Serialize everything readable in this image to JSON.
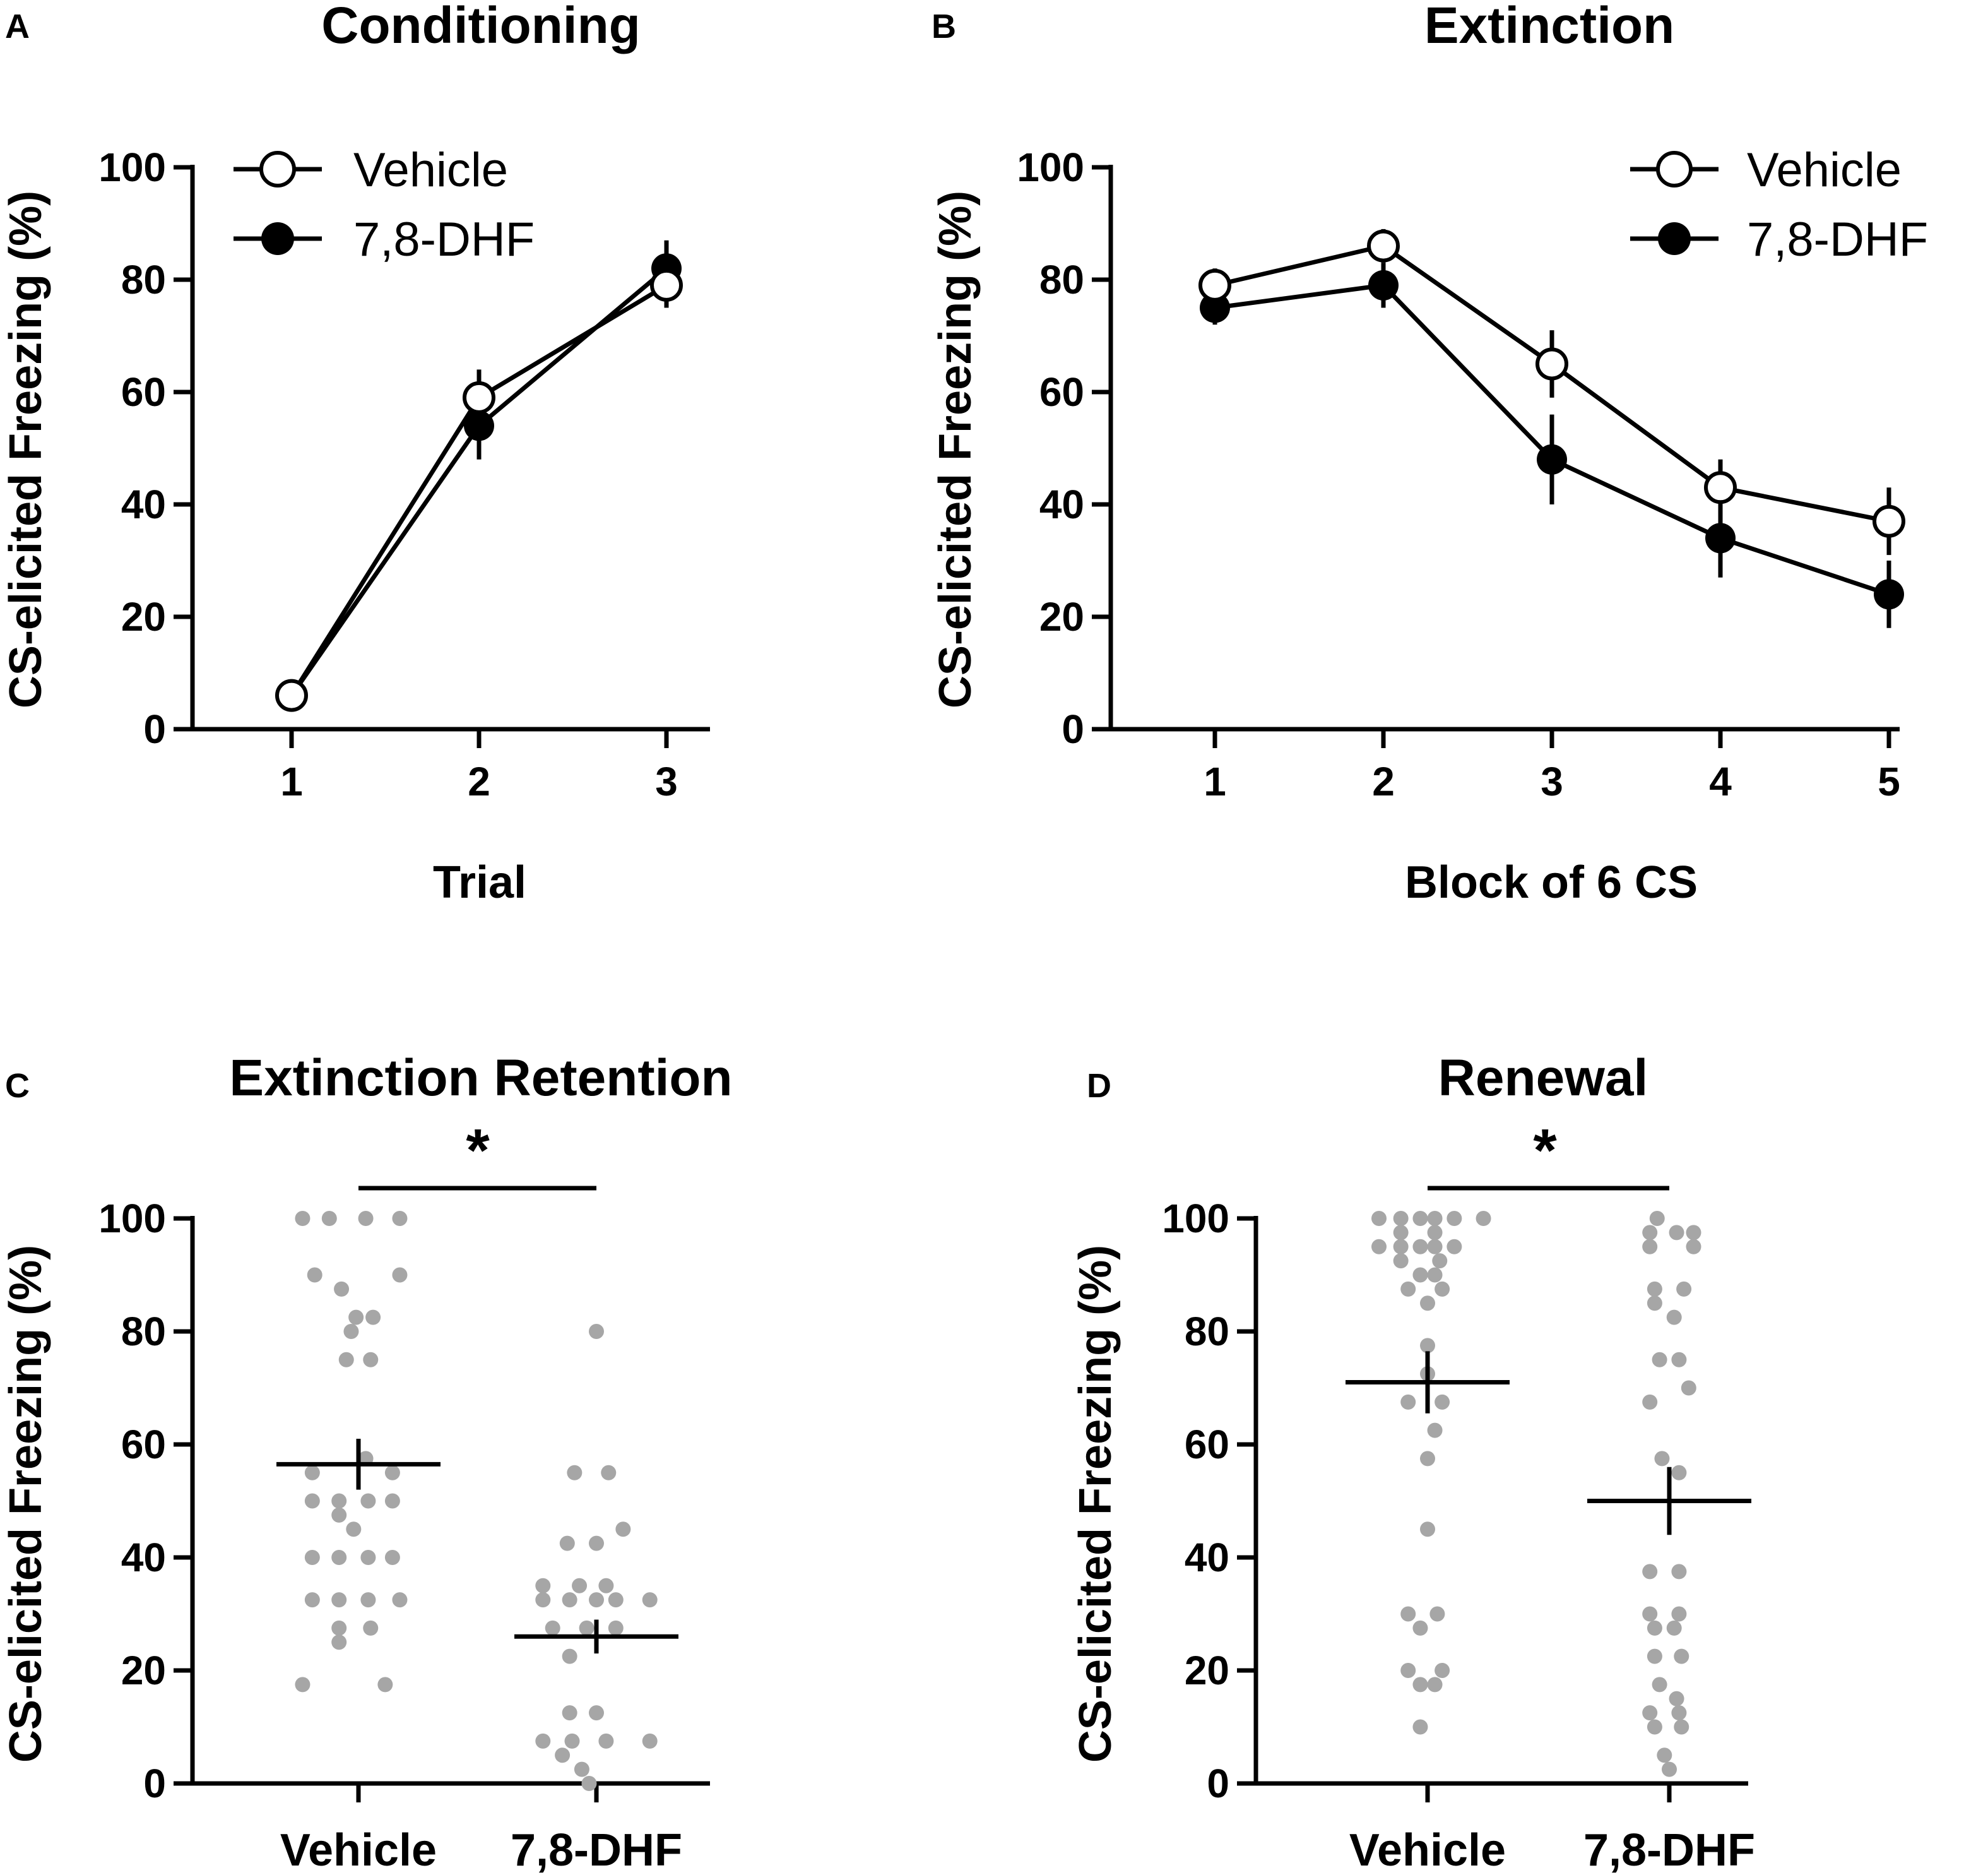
{
  "chart_data": [
    {
      "panel": "A",
      "type": "line",
      "title": "Conditioning",
      "xlabel": "Trial",
      "ylabel": "CS-elicited Freezing (%)",
      "ylim": [
        0,
        100
      ],
      "yticks": [
        0,
        20,
        40,
        60,
        80,
        100
      ],
      "x": [
        1,
        2,
        3
      ],
      "legend": "top-left",
      "series": [
        {
          "name": "Vehicle",
          "marker": "open",
          "values": [
            6,
            59,
            79
          ],
          "errors": [
            1,
            5,
            4
          ]
        },
        {
          "name": "7,8-DHF",
          "marker": "filled",
          "values": [
            6,
            54,
            82
          ],
          "errors": [
            1,
            6,
            5
          ]
        }
      ]
    },
    {
      "panel": "B",
      "type": "line",
      "title": "Extinction",
      "xlabel": "Block of 6 CS",
      "ylabel": "CS-elicited Freezing (%)",
      "ylim": [
        0,
        100
      ],
      "yticks": [
        0,
        20,
        40,
        60,
        80,
        100
      ],
      "x": [
        1,
        2,
        3,
        4,
        5
      ],
      "legend": "top-right",
      "series": [
        {
          "name": "Vehicle",
          "marker": "open",
          "values": [
            79,
            86,
            65,
            43,
            37
          ],
          "errors": [
            3,
            3,
            6,
            5,
            6
          ]
        },
        {
          "name": "7,8-DHF",
          "marker": "filled",
          "values": [
            75,
            79,
            48,
            34,
            24
          ],
          "errors": [
            3,
            4,
            8,
            7,
            6
          ]
        }
      ]
    },
    {
      "panel": "C",
      "type": "scatter",
      "title": "Extinction Retention",
      "xlabel": "",
      "ylabel": "CS-elicited Freezing (%)",
      "ylim": [
        0,
        100
      ],
      "yticks": [
        0,
        20,
        40,
        60,
        80,
        100
      ],
      "categories": [
        "Vehicle",
        "7,8-DHF"
      ],
      "significance": "*",
      "groups": [
        {
          "name": "Vehicle",
          "mean": 56.5,
          "sem": 4.5,
          "points": [
            {
              "offset": -0.23,
              "value": 100
            },
            {
              "offset": -0.12,
              "value": 100
            },
            {
              "offset": 0.03,
              "value": 100
            },
            {
              "offset": 0.17,
              "value": 100
            },
            {
              "offset": -0.18,
              "value": 90
            },
            {
              "offset": 0.17,
              "value": 90
            },
            {
              "offset": -0.07,
              "value": 87.5
            },
            {
              "offset": -0.01,
              "value": 82.5
            },
            {
              "offset": 0.06,
              "value": 82.5
            },
            {
              "offset": -0.03,
              "value": 80
            },
            {
              "offset": -0.05,
              "value": 75
            },
            {
              "offset": 0.05,
              "value": 75
            },
            {
              "offset": -0.19,
              "value": 55
            },
            {
              "offset": 0.14,
              "value": 55
            },
            {
              "offset": 0.03,
              "value": 57.5
            },
            {
              "offset": -0.19,
              "value": 50
            },
            {
              "offset": -0.08,
              "value": 50
            },
            {
              "offset": 0.04,
              "value": 50
            },
            {
              "offset": 0.14,
              "value": 50
            },
            {
              "offset": -0.08,
              "value": 47.5
            },
            {
              "offset": -0.02,
              "value": 45
            },
            {
              "offset": -0.19,
              "value": 40
            },
            {
              "offset": -0.08,
              "value": 40
            },
            {
              "offset": 0.04,
              "value": 40
            },
            {
              "offset": 0.14,
              "value": 40
            },
            {
              "offset": -0.19,
              "value": 32.5
            },
            {
              "offset": -0.08,
              "value": 32.5
            },
            {
              "offset": 0.04,
              "value": 32.5
            },
            {
              "offset": 0.17,
              "value": 32.5
            },
            {
              "offset": -0.08,
              "value": 27.5
            },
            {
              "offset": 0.05,
              "value": 27.5
            },
            {
              "offset": -0.08,
              "value": 25
            },
            {
              "offset": -0.23,
              "value": 17.5
            },
            {
              "offset": 0.11,
              "value": 17.5
            }
          ]
        },
        {
          "name": "7,8-DHF",
          "mean": 26,
          "sem": 3,
          "points": [
            {
              "offset": 0.0,
              "value": 80
            },
            {
              "offset": -0.09,
              "value": 55
            },
            {
              "offset": 0.05,
              "value": 55
            },
            {
              "offset": 0.11,
              "value": 45
            },
            {
              "offset": -0.12,
              "value": 42.5
            },
            {
              "offset": 0.0,
              "value": 42.5
            },
            {
              "offset": -0.22,
              "value": 35
            },
            {
              "offset": -0.07,
              "value": 35
            },
            {
              "offset": 0.04,
              "value": 35
            },
            {
              "offset": -0.22,
              "value": 32.5
            },
            {
              "offset": -0.11,
              "value": 32.5
            },
            {
              "offset": 0.0,
              "value": 32.5
            },
            {
              "offset": 0.08,
              "value": 32.5
            },
            {
              "offset": 0.22,
              "value": 32.5
            },
            {
              "offset": -0.18,
              "value": 27.5
            },
            {
              "offset": -0.04,
              "value": 27.5
            },
            {
              "offset": 0.08,
              "value": 27.5
            },
            {
              "offset": -0.11,
              "value": 22.5
            },
            {
              "offset": -0.11,
              "value": 12.5
            },
            {
              "offset": 0.0,
              "value": 12.5
            },
            {
              "offset": -0.22,
              "value": 7.5
            },
            {
              "offset": -0.1,
              "value": 7.5
            },
            {
              "offset": 0.04,
              "value": 7.5
            },
            {
              "offset": 0.22,
              "value": 7.5
            },
            {
              "offset": -0.14,
              "value": 5
            },
            {
              "offset": -0.06,
              "value": 2.5
            },
            {
              "offset": -0.03,
              "value": 0
            }
          ]
        }
      ]
    },
    {
      "panel": "D",
      "type": "scatter",
      "title": "Renewal",
      "xlabel": "",
      "ylabel": "CS-elicited Freezing (%)",
      "ylim": [
        0,
        100
      ],
      "yticks": [
        0,
        20,
        40,
        60,
        80,
        100
      ],
      "categories": [
        "Vehicle",
        "7,8-DHF"
      ],
      "significance": "*",
      "groups": [
        {
          "name": "Vehicle",
          "mean": 71,
          "sem": 5.5,
          "points": [
            {
              "offset": -0.2,
              "value": 100
            },
            {
              "offset": -0.11,
              "value": 100
            },
            {
              "offset": -0.03,
              "value": 100
            },
            {
              "offset": 0.03,
              "value": 100
            },
            {
              "offset": 0.11,
              "value": 100
            },
            {
              "offset": 0.23,
              "value": 100
            },
            {
              "offset": -0.11,
              "value": 97.5
            },
            {
              "offset": 0.03,
              "value": 97.5
            },
            {
              "offset": -0.2,
              "value": 95
            },
            {
              "offset": -0.11,
              "value": 95
            },
            {
              "offset": -0.03,
              "value": 95
            },
            {
              "offset": 0.03,
              "value": 95
            },
            {
              "offset": 0.11,
              "value": 95
            },
            {
              "offset": -0.11,
              "value": 92.5
            },
            {
              "offset": 0.05,
              "value": 92.5
            },
            {
              "offset": -0.03,
              "value": 90
            },
            {
              "offset": 0.03,
              "value": 90
            },
            {
              "offset": -0.08,
              "value": 87.5
            },
            {
              "offset": 0.06,
              "value": 87.5
            },
            {
              "offset": 0.0,
              "value": 85
            },
            {
              "offset": 0.0,
              "value": 77.5
            },
            {
              "offset": 0.0,
              "value": 72.5
            },
            {
              "offset": -0.08,
              "value": 67.5
            },
            {
              "offset": 0.06,
              "value": 67.5
            },
            {
              "offset": 0.03,
              "value": 62.5
            },
            {
              "offset": 0.0,
              "value": 57.5
            },
            {
              "offset": 0.0,
              "value": 45
            },
            {
              "offset": -0.08,
              "value": 30
            },
            {
              "offset": 0.04,
              "value": 30
            },
            {
              "offset": -0.03,
              "value": 27.5
            },
            {
              "offset": -0.08,
              "value": 20
            },
            {
              "offset": 0.06,
              "value": 20
            },
            {
              "offset": -0.03,
              "value": 17.5
            },
            {
              "offset": 0.03,
              "value": 17.5
            },
            {
              "offset": -0.03,
              "value": 10
            }
          ]
        },
        {
          "name": "7,8-DHF",
          "mean": 50,
          "sem": 6,
          "points": [
            {
              "offset": -0.05,
              "value": 100
            },
            {
              "offset": -0.08,
              "value": 97.5
            },
            {
              "offset": 0.03,
              "value": 97.5
            },
            {
              "offset": 0.1,
              "value": 97.5
            },
            {
              "offset": -0.08,
              "value": 95
            },
            {
              "offset": 0.1,
              "value": 95
            },
            {
              "offset": -0.06,
              "value": 87.5
            },
            {
              "offset": 0.06,
              "value": 87.5
            },
            {
              "offset": -0.06,
              "value": 85
            },
            {
              "offset": 0.02,
              "value": 82.5
            },
            {
              "offset": -0.04,
              "value": 75
            },
            {
              "offset": 0.04,
              "value": 75
            },
            {
              "offset": 0.08,
              "value": 70
            },
            {
              "offset": -0.08,
              "value": 67.5
            },
            {
              "offset": -0.03,
              "value": 57.5
            },
            {
              "offset": 0.04,
              "value": 55
            },
            {
              "offset": -0.08,
              "value": 37.5
            },
            {
              "offset": 0.04,
              "value": 37.5
            },
            {
              "offset": -0.08,
              "value": 30
            },
            {
              "offset": 0.04,
              "value": 30
            },
            {
              "offset": -0.06,
              "value": 27.5
            },
            {
              "offset": 0.02,
              "value": 27.5
            },
            {
              "offset": -0.06,
              "value": 22.5
            },
            {
              "offset": 0.05,
              "value": 22.5
            },
            {
              "offset": -0.04,
              "value": 17.5
            },
            {
              "offset": 0.03,
              "value": 15
            },
            {
              "offset": -0.08,
              "value": 12.5
            },
            {
              "offset": 0.04,
              "value": 12.5
            },
            {
              "offset": -0.06,
              "value": 10
            },
            {
              "offset": 0.05,
              "value": 10
            },
            {
              "offset": -0.02,
              "value": 5
            },
            {
              "offset": 0.0,
              "value": 2.5
            }
          ]
        }
      ]
    }
  ]
}
